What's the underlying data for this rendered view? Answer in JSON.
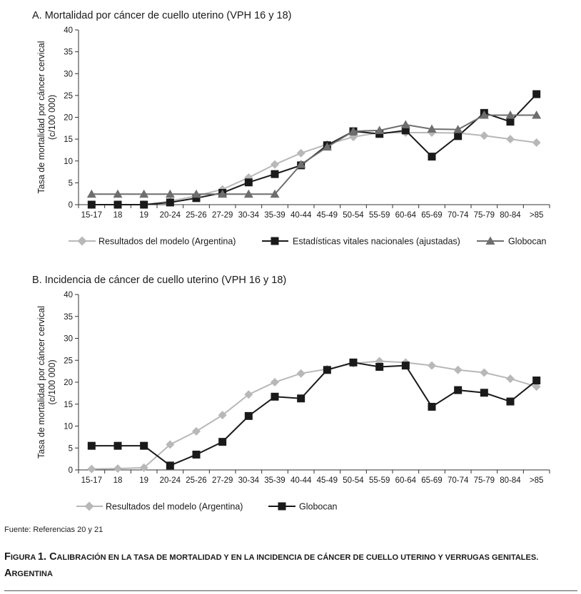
{
  "chart_data": [
    {
      "type": "line",
      "title": "A. Mortalidad por cáncer de cuello uterino (VPH 16 y 18)",
      "ylabel_line1": "Tasa de mortalidad por cáncer cervical",
      "ylabel_line2": "(c/100 000)",
      "ylim": [
        0,
        40
      ],
      "yticks": [
        0,
        5,
        10,
        15,
        20,
        25,
        30,
        35,
        40
      ],
      "categories": [
        "15-17",
        "18",
        "19",
        "20-24",
        "25-26",
        "27-29",
        "30-34",
        "35-39",
        "40-44",
        "45-49",
        "50-54",
        "55-59",
        "60-64",
        "65-69",
        "70-74",
        "75-79",
        "80-84",
        ">85"
      ],
      "series": [
        {
          "name": "Resultados del modelo (Argentina)",
          "marker": "diamond",
          "color": "#b8b8b8",
          "values": [
            0,
            0,
            0,
            0.8,
            2,
            3.5,
            6.2,
            9.2,
            11.8,
            13.8,
            15.5,
            16.5,
            16.5,
            16.5,
            16.4,
            15.8,
            15,
            14.2
          ]
        },
        {
          "name": "Estadísticas vitales nacionales (ajustadas)",
          "marker": "square",
          "color": "#1a1a1a",
          "values": [
            0,
            0,
            0,
            0.5,
            1.5,
            2.7,
            5.1,
            7,
            9,
            13.6,
            16.8,
            16.2,
            17,
            11,
            15.7,
            21,
            19,
            25.3
          ]
        },
        {
          "name": "Globocan",
          "marker": "triangle",
          "color": "#6e6e6e",
          "values": [
            2.4,
            2.4,
            2.4,
            2.4,
            2.4,
            2.4,
            2.4,
            2.4,
            9.2,
            13.2,
            16.8,
            17,
            18.3,
            17.3,
            17.2,
            20.5,
            20.5,
            20.5
          ]
        }
      ]
    },
    {
      "type": "line",
      "title": "B. Incidencia de cáncer de cuello uterino (VPH 16 y 18)",
      "ylabel_line1": "Tasa de mortalidad por cáncer cervical",
      "ylabel_line2": "(c/100 000)",
      "ylim": [
        0,
        40
      ],
      "yticks": [
        0,
        5,
        10,
        15,
        20,
        25,
        30,
        35,
        40
      ],
      "categories": [
        "15-17",
        "18",
        "19",
        "20-24",
        "25-26",
        "27-29",
        "30-34",
        "35-39",
        "40-44",
        "45-49",
        "50-54",
        "55-59",
        "60-64",
        "65-69",
        "70-74",
        "75-79",
        "80-84",
        ">85"
      ],
      "series": [
        {
          "name": "Resultados del modelo (Argentina)",
          "marker": "diamond",
          "color": "#b8b8b8",
          "values": [
            0.2,
            0.3,
            0.5,
            5.8,
            8.8,
            12.5,
            17.2,
            20,
            22,
            23,
            24.3,
            24.8,
            24.5,
            23.8,
            22.8,
            22.2,
            20.8,
            19
          ]
        },
        {
          "name": "Globocan",
          "marker": "square",
          "color": "#1a1a1a",
          "values": [
            5.5,
            5.5,
            5.5,
            1,
            3.5,
            6.4,
            12.3,
            16.7,
            16.3,
            22.8,
            24.5,
            23.5,
            23.8,
            14.4,
            18.2,
            17.6,
            15.6,
            20.4
          ]
        }
      ]
    }
  ],
  "source_text": "Fuente: Referencias 20 y 21",
  "caption": "Figura 1. Calibración en la tasa de mortalidad y en la incidencia de cáncer de cuello uterino y verrugas genitales. Argentina"
}
